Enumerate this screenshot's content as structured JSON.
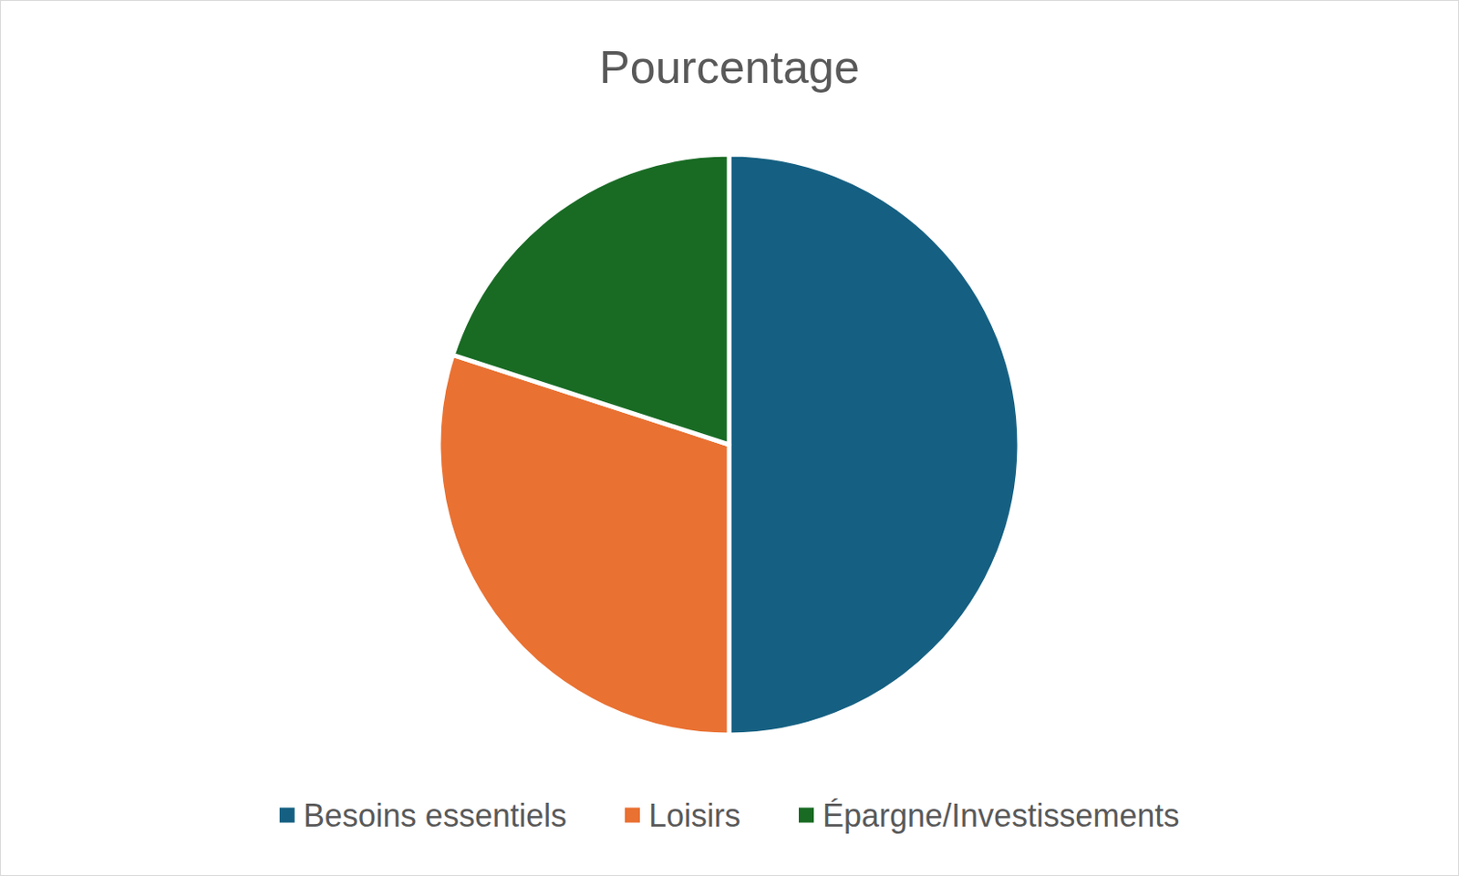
{
  "chart_data": {
    "type": "pie",
    "title": "Pourcentage",
    "categories": [
      "Besoins essentiels",
      "Loisirs",
      "Épargne/Investissements"
    ],
    "values": [
      50,
      30,
      20
    ],
    "colors": [
      "#156082",
      "#e97132",
      "#196b24"
    ],
    "legend": "bottom"
  }
}
